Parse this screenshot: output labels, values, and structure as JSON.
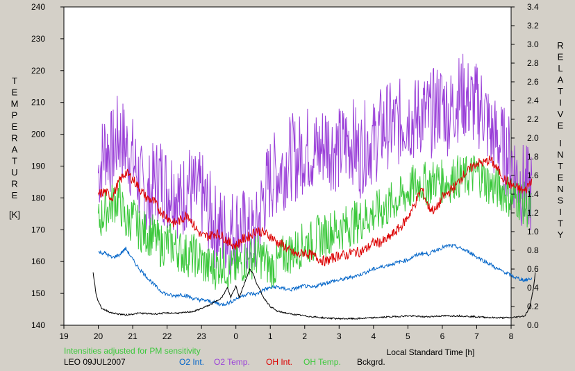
{
  "chart_data": {
    "type": "line",
    "xlabel": "Local Standard Time [h]",
    "ylabel_left_letters": [
      "T",
      "E",
      "M",
      "P",
      "E",
      "R",
      "A",
      "T",
      "U",
      "R",
      "E"
    ],
    "ylabel_left_unit": "[K]",
    "ylabel_right_letters_1": [
      "R",
      "E",
      "L",
      "A",
      "T",
      "I",
      "V",
      "E"
    ],
    "ylabel_right_letters_2": [
      "I",
      "N",
      "T",
      "E",
      "N",
      "S",
      "I",
      "T",
      "Y"
    ],
    "note": "Intensities adjusted for PM sensitivity",
    "station_date": "LEO 09JUL2007",
    "x_ticks": [
      19,
      20,
      21,
      22,
      23,
      0,
      1,
      2,
      3,
      4,
      5,
      6,
      7,
      8
    ],
    "x_tick_labels": [
      "19",
      "20",
      "21",
      "22",
      "23",
      "0",
      "1",
      "2",
      "3",
      "4",
      "5",
      "6",
      "7",
      "8"
    ],
    "y_left_range": [
      140,
      240
    ],
    "y_left_ticks": [
      140,
      150,
      160,
      170,
      180,
      190,
      200,
      210,
      220,
      230,
      240
    ],
    "y_left_tick_labels": [
      "140",
      "150",
      "160",
      "170",
      "180",
      "190",
      "200",
      "210",
      "220",
      "230",
      "240"
    ],
    "y_right_range": [
      0.0,
      3.4
    ],
    "y_right_ticks": [
      0.0,
      0.2,
      0.4,
      0.6,
      0.8,
      1.0,
      1.2,
      1.4,
      1.6,
      1.8,
      2.0,
      2.2,
      2.4,
      2.6,
      2.8,
      3.0,
      3.2,
      3.4
    ],
    "y_right_tick_labels": [
      "0.0",
      "0.2",
      "0.4",
      "0.6",
      "0.8",
      "1.0",
      "1.2",
      "1.4",
      "1.6",
      "1.8",
      "2.0",
      "2.2",
      "2.4",
      "2.6",
      "2.8",
      "3.0",
      "3.2",
      "3.4"
    ],
    "x_hours_since_19": true,
    "series": [
      {
        "name": "O2 Int.",
        "axis": "right",
        "color": "#0064c8",
        "x": [
          20.0,
          20.2,
          20.4,
          20.6,
          20.8,
          21.0,
          21.2,
          21.4,
          21.6,
          21.8,
          22.0,
          22.2,
          22.4,
          22.6,
          22.8,
          23.0,
          23.2,
          23.4,
          23.6,
          23.8,
          24.0,
          24.2,
          24.4,
          24.6,
          24.8,
          25.0,
          25.2,
          25.4,
          25.6,
          25.8,
          26.0,
          26.2,
          26.4,
          26.6,
          26.8,
          27.0,
          27.2,
          27.4,
          27.6,
          27.8,
          28.0,
          28.2,
          28.4,
          28.6,
          28.8,
          29.0,
          29.2,
          29.4,
          29.6,
          29.8,
          30.0,
          30.2,
          30.4,
          30.6,
          30.8,
          31.0,
          31.2,
          31.4,
          31.6,
          31.8,
          32.0,
          32.2,
          32.4,
          32.6
        ],
        "y": [
          0.78,
          0.77,
          0.72,
          0.75,
          0.82,
          0.7,
          0.6,
          0.52,
          0.44,
          0.37,
          0.33,
          0.31,
          0.33,
          0.31,
          0.28,
          0.27,
          0.26,
          0.24,
          0.22,
          0.24,
          0.28,
          0.32,
          0.34,
          0.33,
          0.38,
          0.4,
          0.41,
          0.39,
          0.38,
          0.4,
          0.42,
          0.4,
          0.43,
          0.45,
          0.47,
          0.48,
          0.5,
          0.52,
          0.54,
          0.57,
          0.6,
          0.62,
          0.64,
          0.66,
          0.68,
          0.7,
          0.74,
          0.77,
          0.76,
          0.8,
          0.83,
          0.85,
          0.84,
          0.81,
          0.78,
          0.73,
          0.69,
          0.65,
          0.6,
          0.57,
          0.53,
          0.5,
          0.48,
          0.5
        ]
      },
      {
        "name": "O2 Temp.",
        "axis": "left",
        "color": "#9a40d8",
        "x": [
          20.0,
          20.2,
          20.4,
          20.6,
          20.8,
          21.0,
          21.2,
          21.4,
          21.6,
          21.8,
          22.0,
          22.2,
          22.4,
          22.6,
          22.8,
          23.0,
          23.2,
          23.4,
          23.6,
          23.8,
          24.0,
          24.2,
          24.4,
          24.6,
          24.8,
          25.0,
          25.2,
          25.4,
          25.6,
          25.8,
          26.0,
          26.2,
          26.4,
          26.6,
          26.8,
          27.0,
          27.2,
          27.4,
          27.6,
          27.8,
          28.0,
          28.2,
          28.4,
          28.6,
          28.8,
          29.0,
          29.2,
          29.4,
          29.6,
          29.8,
          30.0,
          30.2,
          30.4,
          30.6,
          30.8,
          31.0,
          31.2,
          31.4,
          31.6,
          31.8,
          32.0,
          32.2,
          32.4,
          32.6
        ],
        "y": [
          188,
          196,
          194,
          200,
          196,
          192,
          185,
          178,
          184,
          187,
          183,
          184,
          178,
          185,
          180,
          181,
          176,
          171,
          170,
          169,
          171,
          170,
          167,
          169,
          180,
          186,
          188,
          190,
          193,
          192,
          196,
          195,
          194,
          198,
          196,
          195,
          197,
          198,
          193,
          198,
          197,
          201,
          203,
          202,
          204,
          206,
          204,
          207,
          205,
          208,
          210,
          206,
          211,
          212,
          210,
          209,
          208,
          200,
          198,
          195,
          192,
          186,
          183,
          182
        ]
      },
      {
        "name": "OH Int.",
        "axis": "left",
        "color": "#dc0000",
        "x": [
          20.0,
          20.2,
          20.4,
          20.6,
          20.8,
          21.0,
          21.2,
          21.4,
          21.6,
          21.8,
          22.0,
          22.2,
          22.4,
          22.6,
          22.8,
          23.0,
          23.2,
          23.4,
          23.6,
          23.8,
          24.0,
          24.2,
          24.4,
          24.6,
          24.8,
          25.0,
          25.2,
          25.4,
          25.6,
          25.8,
          26.0,
          26.2,
          26.4,
          26.6,
          26.8,
          27.0,
          27.2,
          27.4,
          27.6,
          27.8,
          28.0,
          28.2,
          28.4,
          28.6,
          28.8,
          29.0,
          29.2,
          29.4,
          29.6,
          29.8,
          30.0,
          30.2,
          30.4,
          30.6,
          30.8,
          31.0,
          31.2,
          31.4,
          31.6,
          31.8,
          32.0,
          32.2,
          32.4,
          32.6
        ],
        "y": [
          181,
          182,
          180,
          185,
          188,
          186,
          183,
          180,
          179,
          176,
          174,
          172,
          173,
          175,
          171,
          168,
          168,
          169,
          168,
          166,
          165,
          167,
          168,
          170,
          169,
          168,
          166,
          165,
          163,
          162,
          163,
          162,
          161,
          160,
          161,
          162,
          162,
          163,
          163,
          164,
          166,
          166,
          167,
          169,
          171,
          174,
          178,
          183,
          177,
          176,
          180,
          182,
          184,
          187,
          189,
          191,
          191,
          192,
          189,
          186,
          184,
          183,
          182,
          186
        ]
      },
      {
        "name": "OH Temp.",
        "axis": "left",
        "color": "#3cc83c",
        "x": [
          20.0,
          20.2,
          20.4,
          20.6,
          20.8,
          21.0,
          21.2,
          21.4,
          21.6,
          21.8,
          22.0,
          22.2,
          22.4,
          22.6,
          22.8,
          23.0,
          23.2,
          23.4,
          23.6,
          23.8,
          24.0,
          24.2,
          24.4,
          24.6,
          24.8,
          25.0,
          25.2,
          25.4,
          25.6,
          25.8,
          26.0,
          26.2,
          26.4,
          26.6,
          26.8,
          27.0,
          27.2,
          27.4,
          27.6,
          27.8,
          28.0,
          28.2,
          28.4,
          28.6,
          28.8,
          29.0,
          29.2,
          29.4,
          29.6,
          29.8,
          30.0,
          30.2,
          30.4,
          30.6,
          30.8,
          31.0,
          31.2,
          31.4,
          31.6,
          31.8,
          32.0,
          32.2,
          32.4,
          32.6
        ],
        "y": [
          172,
          176,
          178,
          180,
          172,
          174,
          170,
          169,
          168,
          165,
          166,
          165,
          163,
          162,
          162,
          160,
          158,
          158,
          160,
          157,
          158,
          160,
          161,
          162,
          161,
          158,
          159,
          162,
          163,
          164,
          166,
          166,
          168,
          168,
          170,
          170,
          171,
          172,
          173,
          174,
          175,
          176,
          177,
          179,
          180,
          182,
          184,
          185,
          184,
          186,
          185,
          185,
          187,
          186,
          187,
          188,
          186,
          184,
          183,
          182,
          180,
          180,
          178,
          176
        ]
      },
      {
        "name": "Bckgrd.",
        "axis": "right",
        "color": "#000000",
        "x": [
          19.85,
          19.95,
          20.1,
          20.4,
          20.8,
          21.2,
          21.6,
          22.0,
          22.4,
          22.8,
          23.0,
          23.2,
          23.4,
          23.6,
          23.75,
          23.85,
          24.0,
          24.1,
          24.2,
          24.3,
          24.4,
          24.5,
          24.6,
          24.8,
          25.0,
          25.2,
          25.6,
          26.0,
          26.5,
          27.0,
          27.5,
          28.0,
          28.5,
          29.0,
          29.5,
          30.0,
          30.5,
          31.0,
          31.5,
          32.0,
          32.4,
          32.55,
          32.65,
          32.7
        ],
        "y": [
          0.56,
          0.3,
          0.18,
          0.13,
          0.11,
          0.13,
          0.12,
          0.13,
          0.13,
          0.15,
          0.18,
          0.21,
          0.25,
          0.3,
          0.4,
          0.3,
          0.42,
          0.3,
          0.4,
          0.5,
          0.6,
          0.55,
          0.45,
          0.3,
          0.2,
          0.15,
          0.12,
          0.1,
          0.08,
          0.07,
          0.07,
          0.08,
          0.09,
          0.1,
          0.09,
          0.1,
          0.1,
          0.09,
          0.08,
          0.08,
          0.1,
          0.2,
          0.4,
          0.56
        ]
      }
    ]
  },
  "legend": {
    "o2_int": "O2 Int.",
    "o2_temp": "O2 Temp.",
    "oh_int": "OH Int.",
    "oh_temp": "OH Temp.",
    "bckgrd": "Bckgrd.",
    "o2_int_color": "#0064c8",
    "o2_temp_color": "#9a40d8",
    "oh_int_color": "#dc0000",
    "oh_temp_color": "#3cc83c",
    "bckgrd_color": "#000000",
    "note_color": "#3cc83c"
  }
}
